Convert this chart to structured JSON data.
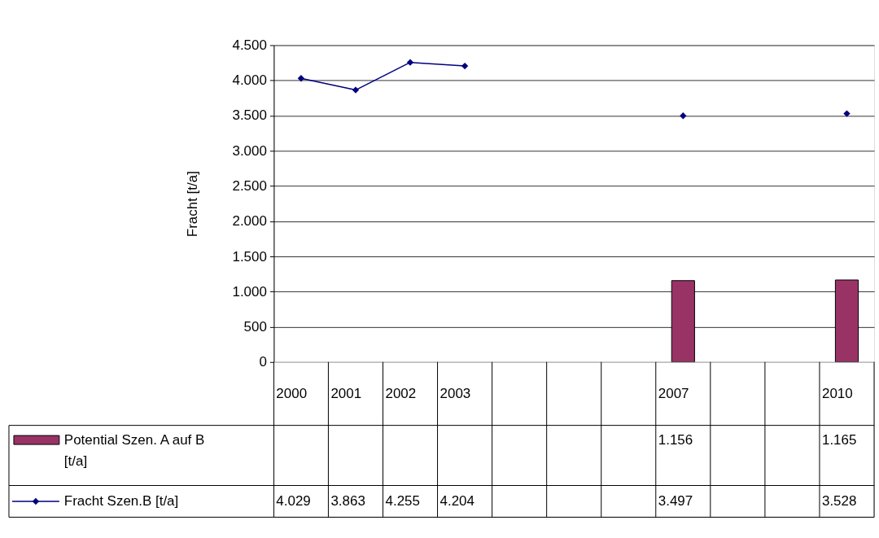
{
  "chart_data": {
    "type": "bar",
    "ylabel": "Fracht [t/a]",
    "categories": [
      "2000",
      "2001",
      "2002",
      "2003",
      null,
      null,
      null,
      "2007",
      null,
      null,
      "2010"
    ],
    "series": [
      {
        "name": "Potential Szen. A auf B [t/a]",
        "color": "#993366",
        "values": [
          null,
          null,
          null,
          null,
          null,
          null,
          null,
          1156,
          null,
          null,
          1165
        ],
        "value_labels": [
          null,
          null,
          null,
          null,
          null,
          null,
          null,
          "1.156",
          null,
          null,
          "1.165"
        ]
      },
      {
        "name": "Fracht Szen.B [t/a]",
        "type": "line",
        "color": "#000080",
        "values": [
          4029,
          3863,
          4255,
          4204,
          null,
          null,
          null,
          3497,
          null,
          null,
          3528
        ],
        "value_labels": [
          "4.029",
          "3.863",
          "4.255",
          "4.204",
          null,
          null,
          null,
          "3.497",
          null,
          null,
          "3.528"
        ]
      }
    ],
    "ylim": [
      0,
      4500
    ],
    "yticks": [
      0,
      500,
      {
        "value": 1000,
        "label": "1.000"
      },
      {
        "value": 1500,
        "label": "1.500"
      },
      {
        "value": 2000,
        "label": "2.000"
      },
      {
        "value": 2500,
        "label": "2.500"
      },
      {
        "value": 3000,
        "label": "3.000"
      },
      {
        "value": 3500,
        "label": "3.500"
      },
      {
        "value": 4000,
        "label": "4.000"
      },
      {
        "value": 4500,
        "label": "4.500"
      }
    ],
    "grid": "y",
    "legend": "bottom left",
    "marker": "diamond",
    "line_style": "solid"
  }
}
